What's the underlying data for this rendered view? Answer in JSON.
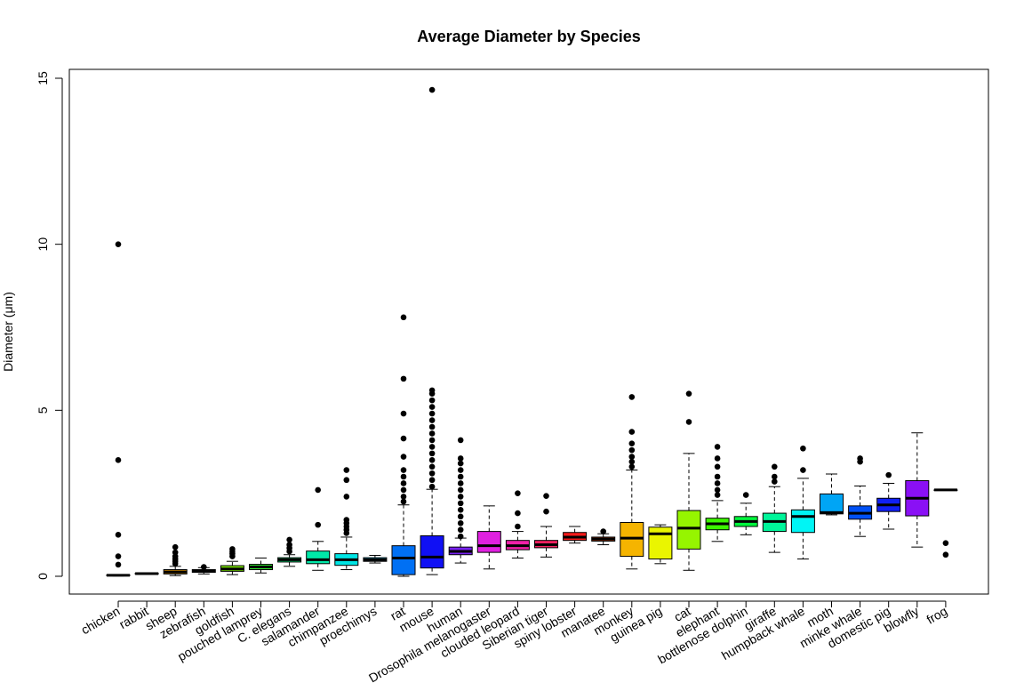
{
  "chart_data": {
    "type": "boxplot",
    "title": "Average Diameter by Species",
    "xlabel": "",
    "ylabel": "Diameter (μm)",
    "ylim": [
      0,
      15.5
    ],
    "yticks": [
      0,
      5,
      10,
      15
    ],
    "ytick_labels": [
      "0",
      "5",
      "10",
      "15"
    ],
    "grid": false,
    "legend": "none",
    "categories": [
      "chicken",
      "rabbit",
      "sheep",
      "zebrafish",
      "goldfish",
      "pouched lamprey",
      "C. elegans",
      "salamander",
      "chimpanzee",
      "proechimys",
      "rat",
      "mouse",
      "human",
      "Drosophila melanogaster",
      "clouded leopard",
      "Siberian tiger",
      "spiny lobster",
      "manatee",
      "monkey",
      "guinea pig",
      "cat",
      "elephant",
      "bottlenose dolphin",
      "giraffe",
      "humpback whale",
      "moth",
      "minke whale",
      "domestic pig",
      "blowfly",
      "frog"
    ],
    "boxes": [
      {
        "q1": 0.02,
        "median": 0.03,
        "q3": 0.04,
        "whisker_low": 0.01,
        "whisker_high": 0.05,
        "color": "#000000",
        "outliers": [
          0.35,
          0.6,
          1.25,
          3.5,
          10.0
        ]
      },
      {
        "q1": 0.07,
        "median": 0.08,
        "q3": 0.09,
        "whisker_low": 0.06,
        "whisker_high": 0.1,
        "color": "#000000",
        "outliers": []
      },
      {
        "q1": 0.07,
        "median": 0.13,
        "q3": 0.2,
        "whisker_low": 0.02,
        "whisker_high": 0.3,
        "color": "#F4A000",
        "outliers": [
          0.38,
          0.45,
          0.52,
          0.6,
          0.72,
          0.88
        ]
      },
      {
        "q1": 0.12,
        "median": 0.16,
        "q3": 0.2,
        "whisker_low": 0.07,
        "whisker_high": 0.26,
        "color": "#BFEA00",
        "outliers": [
          0.28
        ]
      },
      {
        "q1": 0.15,
        "median": 0.22,
        "q3": 0.32,
        "whisker_low": 0.05,
        "whisker_high": 0.45,
        "color": "#7CE800",
        "outliers": [
          0.6,
          0.68,
          0.75,
          0.82
        ]
      },
      {
        "q1": 0.2,
        "median": 0.28,
        "q3": 0.36,
        "whisker_low": 0.1,
        "whisker_high": 0.55,
        "color": "#2EE82E",
        "outliers": []
      },
      {
        "q1": 0.43,
        "median": 0.5,
        "q3": 0.56,
        "whisker_low": 0.3,
        "whisker_high": 0.65,
        "color": "#00E87C",
        "outliers": [
          0.75,
          0.85,
          0.95,
          1.1
        ]
      },
      {
        "q1": 0.38,
        "median": 0.5,
        "q3": 0.76,
        "whisker_low": 0.18,
        "whisker_high": 1.05,
        "color": "#00E8A8",
        "outliers": [
          1.55,
          2.6
        ]
      },
      {
        "q1": 0.33,
        "median": 0.5,
        "q3": 0.68,
        "whisker_low": 0.2,
        "whisker_high": 1.18,
        "color": "#00E5E5",
        "outliers": [
          1.3,
          1.4,
          1.5,
          1.6,
          1.7,
          2.4,
          2.9,
          3.2
        ]
      },
      {
        "q1": 0.45,
        "median": 0.5,
        "q3": 0.56,
        "whisker_low": 0.4,
        "whisker_high": 0.63,
        "color": "#00C4F4",
        "outliers": []
      },
      {
        "q1": 0.05,
        "median": 0.55,
        "q3": 0.92,
        "whisker_low": 0.0,
        "whisker_high": 2.15,
        "color": "#0070F4",
        "outliers": [
          2.25,
          2.4,
          2.6,
          2.8,
          3.0,
          3.2,
          3.6,
          4.15,
          4.9,
          5.95,
          7.8
        ]
      },
      {
        "q1": 0.25,
        "median": 0.58,
        "q3": 1.22,
        "whisker_low": 0.05,
        "whisker_high": 2.62,
        "color": "#1010F4",
        "outliers": [
          2.7,
          2.9,
          3.1,
          3.3,
          3.5,
          3.7,
          3.9,
          4.1,
          4.3,
          4.5,
          4.7,
          4.9,
          5.1,
          5.3,
          5.5,
          5.6,
          14.65
        ]
      },
      {
        "q1": 0.65,
        "median": 0.75,
        "q3": 0.88,
        "whisker_low": 0.4,
        "whisker_high": 1.15,
        "color": "#7820F0",
        "outliers": [
          1.2,
          1.4,
          1.6,
          1.8,
          2.0,
          2.2,
          2.4,
          2.6,
          2.8,
          3.0,
          3.2,
          3.4,
          3.55,
          4.1
        ]
      },
      {
        "q1": 0.72,
        "median": 0.92,
        "q3": 1.35,
        "whisker_low": 0.22,
        "whisker_high": 2.12,
        "color": "#E020E0",
        "outliers": []
      },
      {
        "q1": 0.8,
        "median": 0.92,
        "q3": 1.08,
        "whisker_low": 0.55,
        "whisker_high": 1.35,
        "color": "#F020A8",
        "outliers": [
          1.5,
          1.9,
          2.5
        ]
      },
      {
        "q1": 0.86,
        "median": 0.95,
        "q3": 1.08,
        "whisker_low": 0.58,
        "whisker_high": 1.5,
        "color": "#F52060",
        "outliers": [
          1.95,
          2.42
        ]
      },
      {
        "q1": 1.08,
        "median": 1.18,
        "q3": 1.32,
        "whisker_low": 1.0,
        "whisker_high": 1.5,
        "color": "#F51A1A",
        "outliers": []
      },
      {
        "q1": 1.06,
        "median": 1.12,
        "q3": 1.18,
        "whisker_low": 0.95,
        "whisker_high": 1.28,
        "color": "#F54A10",
        "outliers": [
          1.35
        ]
      },
      {
        "q1": 0.6,
        "median": 1.15,
        "q3": 1.62,
        "whisker_low": 0.22,
        "whisker_high": 3.2,
        "color": "#F5B400",
        "outliers": [
          3.3,
          3.45,
          3.6,
          3.8,
          4.0,
          4.35,
          5.4
        ]
      },
      {
        "q1": 0.52,
        "median": 1.28,
        "q3": 1.48,
        "whisker_low": 0.38,
        "whisker_high": 1.55,
        "color": "#EAF500",
        "outliers": []
      },
      {
        "q1": 0.82,
        "median": 1.45,
        "q3": 1.98,
        "whisker_low": 0.18,
        "whisker_high": 3.7,
        "color": "#96F500",
        "outliers": [
          4.65,
          5.5
        ]
      },
      {
        "q1": 1.4,
        "median": 1.58,
        "q3": 1.75,
        "whisker_low": 1.05,
        "whisker_high": 2.28,
        "color": "#3CF500",
        "outliers": [
          2.45,
          2.6,
          2.8,
          3.0,
          3.3,
          3.55,
          3.9
        ]
      },
      {
        "q1": 1.5,
        "median": 1.65,
        "q3": 1.8,
        "whisker_low": 1.25,
        "whisker_high": 2.2,
        "color": "#00F53C",
        "outliers": [
          2.45
        ]
      },
      {
        "q1": 1.35,
        "median": 1.65,
        "q3": 1.9,
        "whisker_low": 0.72,
        "whisker_high": 2.7,
        "color": "#00F59A",
        "outliers": [
          2.85,
          3.0,
          3.3
        ]
      },
      {
        "q1": 1.32,
        "median": 1.8,
        "q3": 2.0,
        "whisker_low": 0.52,
        "whisker_high": 2.95,
        "color": "#00F5F5",
        "outliers": [
          3.2,
          3.85
        ]
      },
      {
        "q1": 1.88,
        "median": 1.92,
        "q3": 2.48,
        "whisker_low": 1.85,
        "whisker_high": 3.08,
        "color": "#00A5F5",
        "outliers": []
      },
      {
        "q1": 1.72,
        "median": 1.9,
        "q3": 2.12,
        "whisker_low": 1.2,
        "whisker_high": 2.72,
        "color": "#0050F5",
        "outliers": [
          3.45,
          3.55
        ]
      },
      {
        "q1": 1.95,
        "median": 2.15,
        "q3": 2.35,
        "whisker_low": 1.42,
        "whisker_high": 2.8,
        "color": "#1020F5",
        "outliers": [
          3.05
        ]
      },
      {
        "q1": 1.82,
        "median": 2.35,
        "q3": 2.88,
        "whisker_low": 0.88,
        "whisker_high": 4.32,
        "color": "#8A10F5",
        "outliers": []
      },
      {
        "q1": 2.6,
        "median": 2.6,
        "q3": 2.6,
        "whisker_low": 2.6,
        "whisker_high": 2.6,
        "color": "#000000",
        "outliers": [
          0.65,
          1.0
        ]
      }
    ]
  }
}
